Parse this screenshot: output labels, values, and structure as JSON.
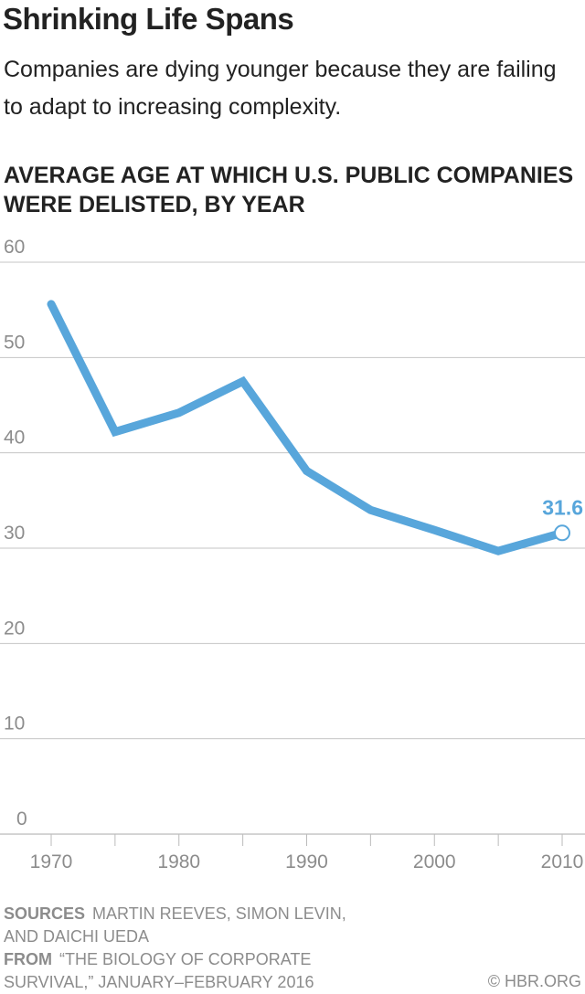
{
  "header": {
    "title": "Shrinking Life Spans",
    "subtitle": "Companies are dying younger because they are failing to adapt to increasing complexity."
  },
  "chart_data": {
    "type": "line",
    "title": "AVERAGE AGE AT WHICH U.S. PUBLIC COMPANIES WERE DELISTED, BY YEAR",
    "xlabel": "",
    "ylabel": "",
    "x": [
      1970,
      1975,
      1980,
      1985,
      1990,
      1995,
      2000,
      2005,
      2010
    ],
    "values": [
      55.6,
      42.2,
      44.2,
      47.5,
      38.1,
      34.0,
      31.9,
      29.7,
      31.6
    ],
    "ylim": [
      0,
      60
    ],
    "xlim": [
      1970,
      2010
    ],
    "y_ticks": [
      "0",
      "10",
      "20",
      "30",
      "40",
      "50",
      "60"
    ],
    "x_ticks": [
      "1970",
      "1980",
      "1990",
      "2000",
      "2010"
    ],
    "annotation": "31.6",
    "grid": true,
    "colors": {
      "line": "#58a6db",
      "grid": "#c4c4c4",
      "axis_text": "#8c8c8c"
    }
  },
  "footer": {
    "sources_label": "SOURCES",
    "sources_text": "MARTIN REEVES, SIMON LEVIN, AND DAICHI UEDA",
    "from_label": "FROM",
    "from_text": "“THE BIOLOGY OF CORPORATE SURVIVAL,” JANUARY–FEBRUARY 2016",
    "copyright": "© HBR.ORG"
  }
}
